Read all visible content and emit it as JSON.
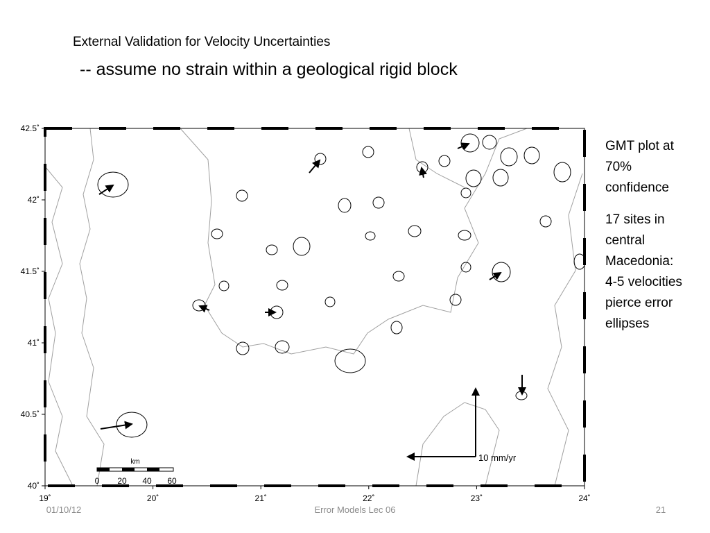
{
  "header": {
    "title": "External Validation for Velocity Uncertainties",
    "subtitle": "-- assume no strain within a geological rigid block"
  },
  "map": {
    "xticks": [
      {
        "value": 19,
        "label": "19˚"
      },
      {
        "value": 20,
        "label": "20˚"
      },
      {
        "value": 21,
        "label": "21˚"
      },
      {
        "value": 22,
        "label": "22˚"
      },
      {
        "value": 23,
        "label": "23˚"
      },
      {
        "value": 24,
        "label": "24˚"
      }
    ],
    "yticks": [
      {
        "value": 40,
        "label": "40˚"
      },
      {
        "value": 40.5,
        "label": "40.5˚"
      },
      {
        "value": 41,
        "label": "41˚"
      },
      {
        "value": 41.5,
        "label": "41.5˚"
      },
      {
        "value": 42,
        "label": "42˚"
      },
      {
        "value": 42.5,
        "label": "42.5˚"
      }
    ],
    "xlim": [
      19,
      24
    ],
    "ylim": [
      40,
      42.5
    ],
    "scale_bar": {
      "unit": "km",
      "labels": [
        "0",
        "20",
        "40",
        "60"
      ]
    },
    "vector_legend": "10 mm/yr"
  },
  "notes": [
    [
      "GMT plot at",
      "70%",
      "confidence"
    ],
    [
      "17 sites in",
      "central",
      "Macedonia:",
      "4-5 velocities",
      "pierce error",
      "ellipses"
    ]
  ],
  "footer": {
    "date": "01/10/12",
    "center": "Error Models Lec 06",
    "page": "21"
  }
}
